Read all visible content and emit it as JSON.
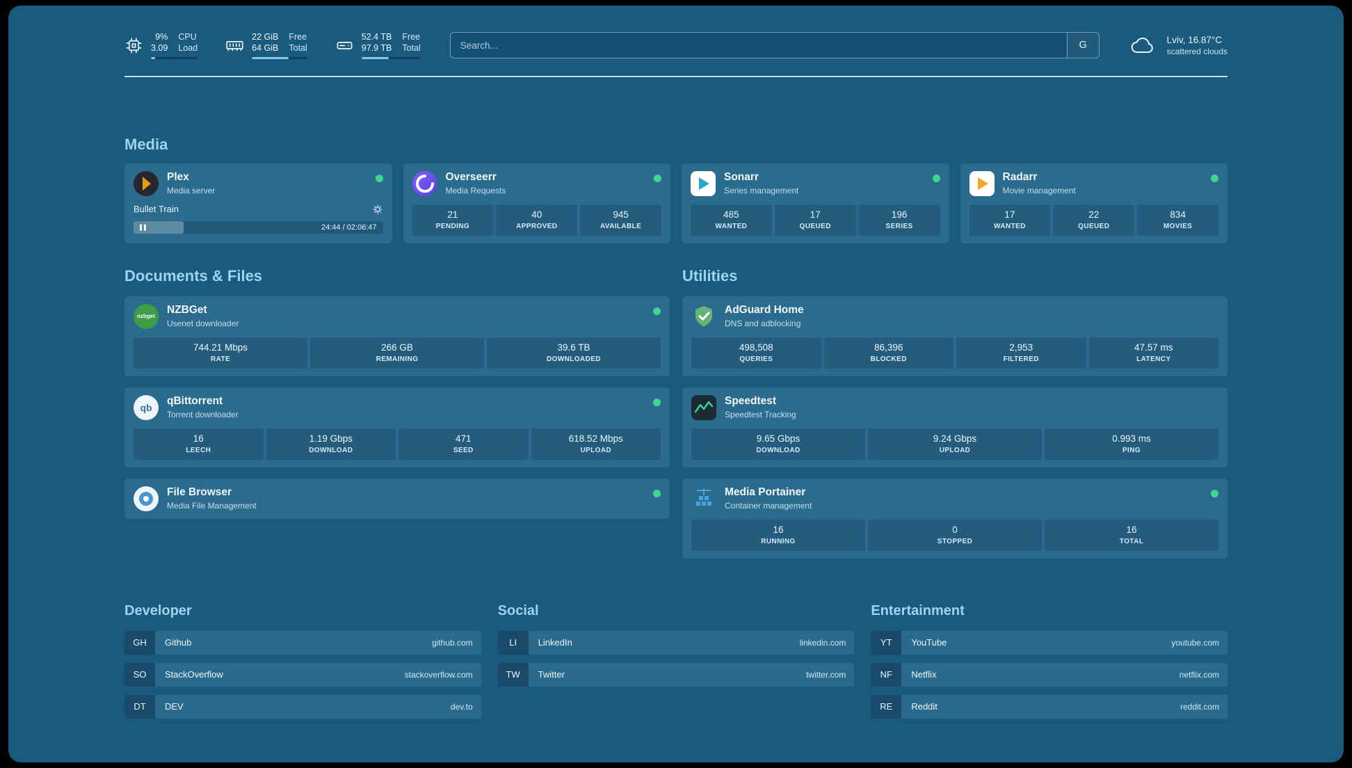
{
  "colors": {
    "background": "#195a7d",
    "heading": "#9fd4ef",
    "status_green": "#3fd68f",
    "progress": "#86c6ea"
  },
  "topbar": {
    "stats": [
      {
        "icon": "cpu-icon",
        "value_top": "9%",
        "value_bottom": "3.09",
        "label_top": "CPU",
        "label_bottom": "Load",
        "progress_pct": 9
      },
      {
        "icon": "memory-icon",
        "value_top": "22 GiB",
        "value_bottom": "64 GiB",
        "label_top": "Free",
        "label_bottom": "Total",
        "progress_pct": 66
      },
      {
        "icon": "disk-icon",
        "value_top": "52.4 TB",
        "value_bottom": "97.9 TB",
        "label_top": "Free",
        "label_bottom": "Total",
        "progress_pct": 46
      }
    ],
    "search": {
      "placeholder": "Search...",
      "button_label": "G"
    },
    "weather": {
      "location": "Lviv, 16.87°C",
      "condition": "scattered clouds"
    }
  },
  "media": {
    "heading": "Media",
    "plex": {
      "name": "Plex",
      "subtitle": "Media server",
      "now_playing": "Bullet Train",
      "time": "24:44 / 02:06:47",
      "progress_pct": 20
    },
    "overseerr": {
      "name": "Overseerr",
      "subtitle": "Media Requests",
      "stats": [
        {
          "value": "21",
          "label": "PENDING"
        },
        {
          "value": "40",
          "label": "APPROVED"
        },
        {
          "value": "945",
          "label": "AVAILABLE"
        }
      ]
    },
    "sonarr": {
      "name": "Sonarr",
      "subtitle": "Series management",
      "stats": [
        {
          "value": "485",
          "label": "WANTED"
        },
        {
          "value": "17",
          "label": "QUEUED"
        },
        {
          "value": "196",
          "label": "SERIES"
        }
      ]
    },
    "radarr": {
      "name": "Radarr",
      "subtitle": "Movie management",
      "stats": [
        {
          "value": "17",
          "label": "WANTED"
        },
        {
          "value": "22",
          "label": "QUEUED"
        },
        {
          "value": "834",
          "label": "MOVIES"
        }
      ]
    }
  },
  "documents": {
    "heading": "Documents & Files",
    "nzbget": {
      "name": "NZBGet",
      "subtitle": "Usenet downloader",
      "icon_text": "nzbget",
      "stats": [
        {
          "value": "744.21 Mbps",
          "label": "RATE"
        },
        {
          "value": "266 GB",
          "label": "REMAINING"
        },
        {
          "value": "39.6 TB",
          "label": "DOWNLOADED"
        }
      ]
    },
    "qbittorrent": {
      "name": "qBittorrent",
      "subtitle": "Torrent downloader",
      "icon_text": "qb",
      "stats": [
        {
          "value": "16",
          "label": "LEECH"
        },
        {
          "value": "1.19 Gbps",
          "label": "DOWNLOAD"
        },
        {
          "value": "471",
          "label": "SEED"
        },
        {
          "value": "618.52 Mbps",
          "label": "UPLOAD"
        }
      ]
    },
    "filebrowser": {
      "name": "File Browser",
      "subtitle": "Media File Management"
    }
  },
  "utilities": {
    "heading": "Utilities",
    "adguard": {
      "name": "AdGuard Home",
      "subtitle": "DNS and adblocking",
      "stats": [
        {
          "value": "498,508",
          "label": "QUERIES"
        },
        {
          "value": "86,396",
          "label": "BLOCKED"
        },
        {
          "value": "2,953",
          "label": "FILTERED"
        },
        {
          "value": "47.57 ms",
          "label": "LATENCY"
        }
      ]
    },
    "speedtest": {
      "name": "Speedtest",
      "subtitle": "Speedtest Tracking",
      "stats": [
        {
          "value": "9.65 Gbps",
          "label": "DOWNLOAD"
        },
        {
          "value": "9.24 Gbps",
          "label": "UPLOAD"
        },
        {
          "value": "0.993 ms",
          "label": "PING"
        }
      ]
    },
    "portainer": {
      "name": "Media Portainer",
      "subtitle": "Container management",
      "stats": [
        {
          "value": "16",
          "label": "RUNNING"
        },
        {
          "value": "0",
          "label": "STOPPED"
        },
        {
          "value": "16",
          "label": "TOTAL"
        }
      ]
    }
  },
  "bookmarks": {
    "developer": {
      "heading": "Developer",
      "items": [
        {
          "abbr": "GH",
          "name": "Github",
          "url": "github.com"
        },
        {
          "abbr": "SO",
          "name": "StackOverflow",
          "url": "stackoverflow.com"
        },
        {
          "abbr": "DT",
          "name": "DEV",
          "url": "dev.to"
        }
      ]
    },
    "social": {
      "heading": "Social",
      "items": [
        {
          "abbr": "LI",
          "name": "LinkedIn",
          "url": "linkedin.com"
        },
        {
          "abbr": "TW",
          "name": "Twitter",
          "url": "twitter.com"
        }
      ]
    },
    "entertainment": {
      "heading": "Entertainment",
      "items": [
        {
          "abbr": "YT",
          "name": "YouTube",
          "url": "youtube.com"
        },
        {
          "abbr": "NF",
          "name": "Netflix",
          "url": "netflix.com"
        },
        {
          "abbr": "RE",
          "name": "Reddit",
          "url": "reddit.com"
        }
      ]
    }
  }
}
